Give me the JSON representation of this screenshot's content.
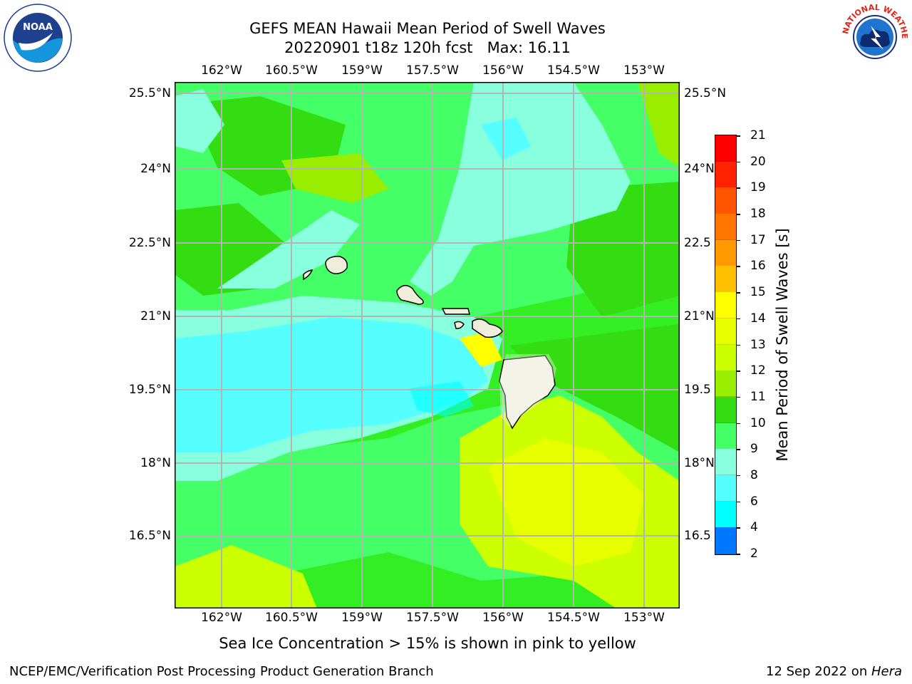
{
  "title": {
    "line1": "GEFS MEAN Hawaii Mean Period of Swell Waves",
    "line2": "20220901 t18z 120h fcst   Max: 16.11"
  },
  "logos": {
    "left_icon": "noaa-logo",
    "right_icon": "national-weather-service-logo",
    "left_text": "NOAA",
    "right_text": "NATIONAL WEATHER SERVICE"
  },
  "map": {
    "lon_ticks": [
      "162°W",
      "160.5°W",
      "159°W",
      "157.5°W",
      "156°W",
      "154.5°W",
      "153°W"
    ],
    "lat_ticks": [
      "25.5°N",
      "24°N",
      "22.5°N",
      "21°N",
      "19.5°N",
      "18°N",
      "16.5°N"
    ],
    "lat_ticks_right": [
      "25.5°N",
      "24°N",
      "22.5",
      "21°N",
      "19.5",
      "18°N",
      "16.5"
    ],
    "region": "Hawaii",
    "colors": {
      "ocean_green": "#33ee22",
      "light_green": "#44ff66",
      "aqua": "#88ffdd",
      "cyan": "#55ffff",
      "yellow_green": "#ccff00",
      "land": "#efeddc"
    }
  },
  "colorbar": {
    "label": "Mean Period of Swell Waves [s]",
    "ticks": [
      "21",
      "20",
      "19",
      "18",
      "17",
      "16",
      "15",
      "14",
      "13",
      "12",
      "11",
      "10",
      "9",
      "8",
      "6",
      "4",
      "2"
    ],
    "colors": [
      "#ff0000",
      "#ff2200",
      "#ff5500",
      "#ff7700",
      "#ff9900",
      "#ffc000",
      "#ffff00",
      "#e8ff00",
      "#ccff00",
      "#99ee00",
      "#33dd11",
      "#44ff66",
      "#88ffdd",
      "#55ffff",
      "#00ffff",
      "#0077ff",
      "#0000ff"
    ]
  },
  "caption": "Sea Ice Concentration > 15% is shown in pink to yellow",
  "footer": {
    "left": "NCEP/EMC/Verification Post Processing Product Generation Branch",
    "right_date": "12 Sep 2022 on ",
    "right_host": "Hera"
  }
}
